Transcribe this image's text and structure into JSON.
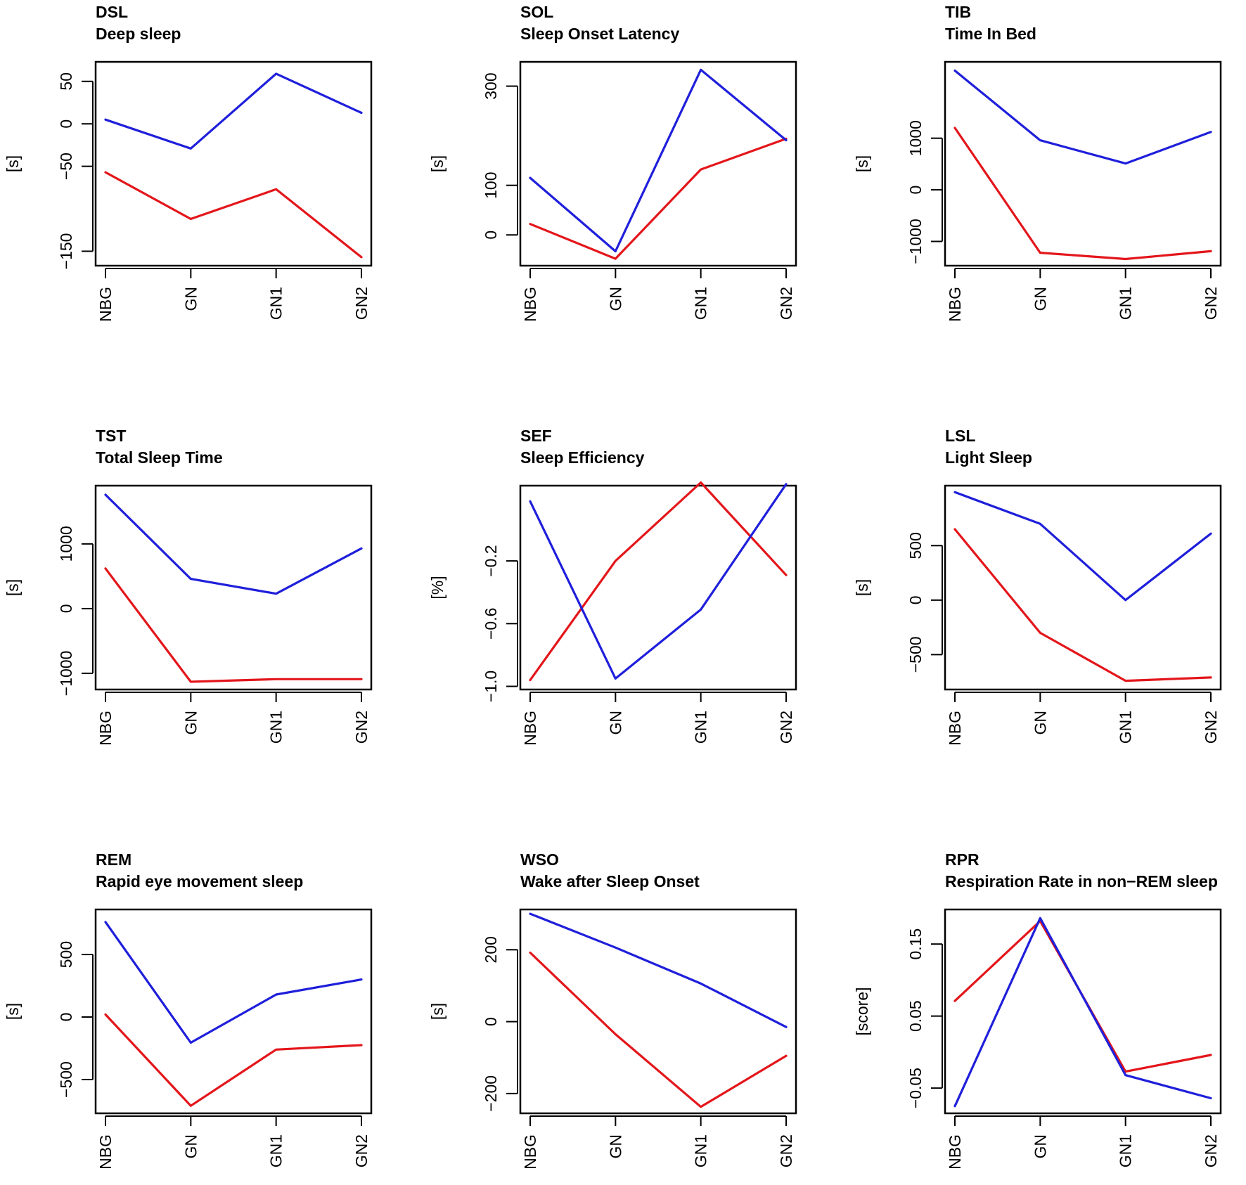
{
  "colors": {
    "series_a": "#e3161b",
    "series_b": "#1f1fdb",
    "axis": "#000000"
  },
  "chart_data": [
    {
      "type": "line",
      "code": "DSL",
      "title": "Deep sleep",
      "ylabel": "[s]",
      "categories": [
        "NBG",
        "GN",
        "GN1",
        "GN2"
      ],
      "ylim": [
        -167,
        73
      ],
      "yticks": [
        "50",
        "0",
        "−50",
        "−150"
      ],
      "ytick_values": [
        50,
        0,
        -50,
        -150
      ],
      "series": [
        {
          "name": "red",
          "color": "#e3161b",
          "values": [
            -57,
            -112,
            -77,
            -157
          ]
        },
        {
          "name": "blue",
          "color": "#1f1fdb",
          "values": [
            5,
            -29,
            59,
            13
          ]
        }
      ]
    },
    {
      "type": "line",
      "code": "SOL",
      "title": "Sleep Onset Latency",
      "ylabel": "[s]",
      "categories": [
        "NBG",
        "GN",
        "GN1",
        "GN2"
      ],
      "ylim": [
        -62,
        349
      ],
      "yticks": [
        "300",
        "100",
        "0"
      ],
      "ytick_values": [
        300,
        100,
        0
      ],
      "series": [
        {
          "name": "red",
          "color": "#e3161b",
          "values": [
            22,
            -48,
            132,
            194
          ]
        },
        {
          "name": "blue",
          "color": "#1f1fdb",
          "values": [
            115,
            -33,
            333,
            191
          ]
        }
      ]
    },
    {
      "type": "line",
      "code": "TIB",
      "title": "Time In Bed",
      "ylabel": "[s]",
      "categories": [
        "NBG",
        "GN",
        "GN1",
        "GN2"
      ],
      "ylim": [
        -1470,
        2480
      ],
      "yticks": [
        "1000",
        "0",
        "−1000"
      ],
      "ytick_values": [
        1000,
        0,
        -1000
      ],
      "series": [
        {
          "name": "red",
          "color": "#e3161b",
          "values": [
            1200,
            -1220,
            -1340,
            -1190
          ]
        },
        {
          "name": "blue",
          "color": "#1f1fdb",
          "values": [
            2310,
            960,
            510,
            1120
          ]
        }
      ]
    },
    {
      "type": "line",
      "code": "TST",
      "title": "Total Sleep Time",
      "ylabel": "[s]",
      "categories": [
        "NBG",
        "GN",
        "GN1",
        "GN2"
      ],
      "ylim": [
        -1250,
        1900
      ],
      "yticks": [
        "1000",
        "0",
        "−1000"
      ],
      "ytick_values": [
        1000,
        0,
        -1000
      ],
      "series": [
        {
          "name": "red",
          "color": "#e3161b",
          "values": [
            620,
            -1130,
            -1090,
            -1090
          ]
        },
        {
          "name": "blue",
          "color": "#1f1fdb",
          "values": [
            1760,
            460,
            230,
            930
          ]
        }
      ]
    },
    {
      "type": "line",
      "code": "SEF",
      "title": "Sleep Efficiency",
      "ylabel": "[%]",
      "categories": [
        "NBG",
        "GN",
        "GN1",
        "GN2"
      ],
      "ylim": [
        -1.02,
        0.28
      ],
      "yticks": [
        "−0.2",
        "−0.6",
        "−1.0"
      ],
      "ytick_values": [
        -0.2,
        -0.6,
        -1.0
      ],
      "series": [
        {
          "name": "red",
          "color": "#e3161b",
          "values": [
            -0.96,
            -0.2,
            0.3,
            -0.29
          ]
        },
        {
          "name": "blue",
          "color": "#1f1fdb",
          "values": [
            0.18,
            -0.95,
            -0.51,
            0.29
          ]
        }
      ]
    },
    {
      "type": "line",
      "code": "LSL",
      "title": "Light Sleep",
      "ylabel": "[s]",
      "categories": [
        "NBG",
        "GN",
        "GN1",
        "GN2"
      ],
      "ylim": [
        -820,
        1050
      ],
      "yticks": [
        "500",
        "0",
        "−500"
      ],
      "ytick_values": [
        500,
        0,
        -500
      ],
      "series": [
        {
          "name": "red",
          "color": "#e3161b",
          "values": [
            650,
            -300,
            -740,
            -710
          ]
        },
        {
          "name": "blue",
          "color": "#1f1fdb",
          "values": [
            990,
            700,
            0,
            610
          ]
        }
      ]
    },
    {
      "type": "line",
      "code": "REM",
      "title": "Rapid eye movement sleep",
      "ylabel": "[s]",
      "categories": [
        "NBG",
        "GN",
        "GN1",
        "GN2"
      ],
      "ylim": [
        -770,
        860
      ],
      "yticks": [
        "500",
        "0",
        "−500"
      ],
      "ytick_values": [
        500,
        0,
        -500
      ],
      "series": [
        {
          "name": "red",
          "color": "#e3161b",
          "values": [
            20,
            -710,
            -260,
            -225
          ]
        },
        {
          "name": "blue",
          "color": "#1f1fdb",
          "values": [
            760,
            -205,
            180,
            300
          ]
        }
      ]
    },
    {
      "type": "line",
      "code": "WSO",
      "title": "Wake after Sleep Onset",
      "ylabel": "[s]",
      "categories": [
        "NBG",
        "GN",
        "GN1",
        "GN2"
      ],
      "ylim": [
        -255,
        312
      ],
      "yticks": [
        "200",
        "0",
        "−200"
      ],
      "ytick_values": [
        200,
        0,
        -200
      ],
      "series": [
        {
          "name": "red",
          "color": "#e3161b",
          "values": [
            192,
            -35,
            -237,
            -95
          ]
        },
        {
          "name": "blue",
          "color": "#1f1fdb",
          "values": [
            300,
            206,
            106,
            -15
          ]
        }
      ]
    },
    {
      "type": "line",
      "code": "RPR",
      "title": "Respiration Rate in non−REM sleep",
      "ylabel": "[score]",
      "categories": [
        "NBG",
        "GN",
        "GN1",
        "GN2"
      ],
      "ylim": [
        -0.085,
        0.198
      ],
      "yticks": [
        "0.15",
        "0.05",
        "−0.05"
      ],
      "ytick_values": [
        0.15,
        0.05,
        -0.05
      ],
      "series": [
        {
          "name": "red",
          "color": "#e3161b",
          "values": [
            0.071,
            0.182,
            -0.027,
            -0.004
          ]
        },
        {
          "name": "blue",
          "color": "#1f1fdb",
          "values": [
            -0.075,
            0.186,
            -0.032,
            -0.064
          ]
        }
      ]
    }
  ]
}
